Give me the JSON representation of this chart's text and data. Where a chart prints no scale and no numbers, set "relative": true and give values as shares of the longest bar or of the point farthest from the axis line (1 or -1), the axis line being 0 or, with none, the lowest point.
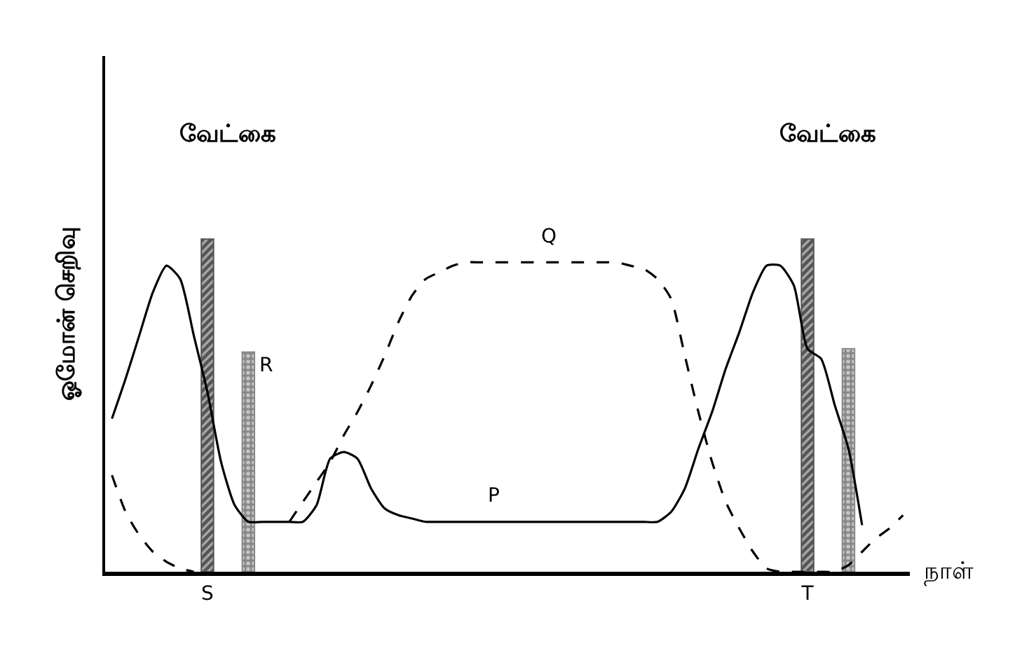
{
  "chart_data": {
    "type": "line",
    "relative": true,
    "ylabel": "ஓமோன் செறிவு",
    "xlabel": "நாள்",
    "marker": "none",
    "categories": [
      null,
      null,
      null,
      null,
      null,
      null,
      null,
      "S",
      null,
      null,
      null,
      null,
      null,
      null,
      null,
      null,
      null,
      null,
      null,
      null,
      null,
      null,
      null,
      null,
      null,
      null,
      null,
      null,
      null,
      null,
      null,
      null,
      null,
      null,
      null,
      null,
      null,
      null,
      null,
      null,
      null,
      null,
      null,
      null,
      null,
      null,
      null,
      null,
      null,
      null,
      null,
      "T",
      null,
      null,
      null,
      null,
      null,
      null,
      null
    ],
    "series": [
      {
        "type": "bar",
        "color": "#555555",
        "values": [
          null,
          null,
          null,
          null,
          null,
          null,
          null,
          1.0,
          null,
          null,
          null,
          null,
          null,
          null,
          null,
          null,
          null,
          null,
          null,
          null,
          null,
          null,
          null,
          null,
          null,
          null,
          null,
          null,
          null,
          null,
          null,
          null,
          null,
          null,
          null,
          null,
          null,
          null,
          null,
          null,
          null,
          null,
          null,
          null,
          null,
          null,
          null,
          null,
          null,
          null,
          null,
          1.0,
          null,
          null,
          null,
          null,
          null,
          null,
          null
        ]
      },
      {
        "type": "bar",
        "name": "R",
        "color": "#888888",
        "values": [
          null,
          null,
          null,
          null,
          null,
          null,
          null,
          null,
          null,
          null,
          0.66,
          null,
          null,
          null,
          null,
          null,
          null,
          null,
          null,
          null,
          null,
          null,
          null,
          null,
          null,
          null,
          null,
          null,
          null,
          null,
          null,
          null,
          null,
          null,
          null,
          null,
          null,
          null,
          null,
          null,
          null,
          null,
          null,
          null,
          null,
          null,
          null,
          null,
          null,
          null,
          null,
          null,
          null,
          null,
          0.67,
          null,
          null,
          null,
          null
        ]
      },
      {
        "name": "P",
        "color": "#000000",
        "line_style": "solid",
        "values": [
          0.46,
          0.58,
          0.71,
          0.84,
          0.92,
          0.88,
          0.71,
          0.54,
          0.33,
          0.2,
          0.15,
          0.15,
          0.15,
          0.15,
          0.15,
          0.2,
          0.34,
          0.36,
          0.34,
          0.25,
          0.19,
          0.17,
          0.16,
          0.15,
          0.15,
          0.15,
          0.15,
          0.15,
          0.15,
          0.15,
          0.15,
          0.15,
          0.15,
          0.15,
          0.15,
          0.15,
          0.15,
          0.15,
          0.15,
          0.15,
          0.15,
          0.18,
          0.25,
          0.37,
          0.48,
          0.61,
          0.72,
          0.84,
          0.92,
          0.92,
          0.86,
          0.67,
          0.64,
          0.5,
          0.37,
          0.14,
          null,
          null,
          null
        ]
      },
      {
        "name": "Q",
        "color": "#000000",
        "line_style": "dashed",
        "values": [
          0.29,
          0.18,
          0.11,
          0.06,
          0.03,
          0.01,
          0,
          null,
          null,
          null,
          null,
          null,
          null,
          0.15,
          0.21,
          0.27,
          0.33,
          0.41,
          0.48,
          0.56,
          0.65,
          0.75,
          0.83,
          0.88,
          0.9,
          0.92,
          0.93,
          0.93,
          0.93,
          0.93,
          0.93,
          0.93,
          0.93,
          0.93,
          0.93,
          0.93,
          0.93,
          0.93,
          0.92,
          0.91,
          0.88,
          0.82,
          0.65,
          0.48,
          0.33,
          0.21,
          0.13,
          0.06,
          0.01,
          0,
          0,
          0,
          0,
          0,
          0.02,
          0.06,
          0.1,
          0.13,
          0.17
        ]
      }
    ],
    "annotations": [
      "வேட்கை",
      "வேட்கை"
    ]
  }
}
